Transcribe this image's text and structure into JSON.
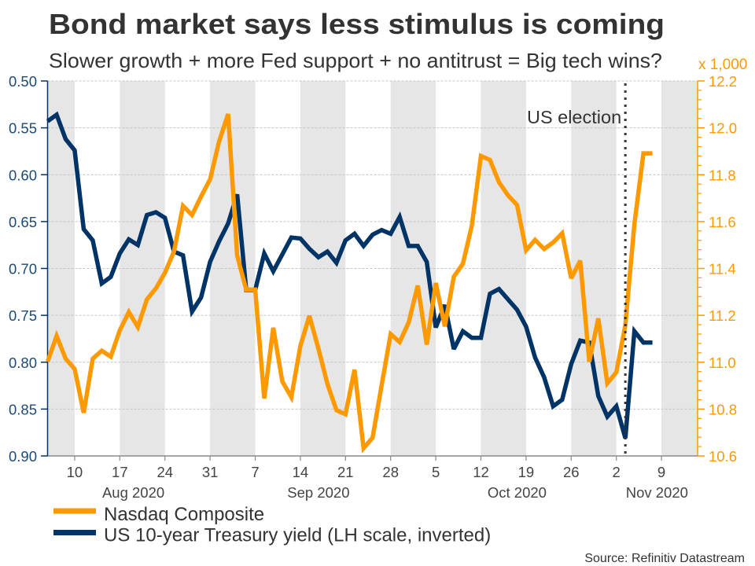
{
  "chart_data": {
    "type": "line",
    "title": "Bond market says less stimulus is coming",
    "subtitle": "Slower growth + more Fed support + no antitrust = Big tech wins?",
    "xlabel": "",
    "xlim": [
      "2020-08-05",
      "2020-11-13"
    ],
    "x_axis_type": "weekdays",
    "x": [
      "2020-08-05",
      "2020-08-06",
      "2020-08-07",
      "2020-08-10",
      "2020-08-11",
      "2020-08-12",
      "2020-08-13",
      "2020-08-14",
      "2020-08-17",
      "2020-08-18",
      "2020-08-19",
      "2020-08-20",
      "2020-08-21",
      "2020-08-24",
      "2020-08-25",
      "2020-08-26",
      "2020-08-27",
      "2020-08-28",
      "2020-08-31",
      "2020-09-01",
      "2020-09-02",
      "2020-09-03",
      "2020-09-04",
      "2020-09-07",
      "2020-09-08",
      "2020-09-09",
      "2020-09-10",
      "2020-09-11",
      "2020-09-14",
      "2020-09-15",
      "2020-09-16",
      "2020-09-17",
      "2020-09-18",
      "2020-09-21",
      "2020-09-22",
      "2020-09-23",
      "2020-09-24",
      "2020-09-25",
      "2020-09-28",
      "2020-09-29",
      "2020-09-30",
      "2020-10-01",
      "2020-10-02",
      "2020-10-05",
      "2020-10-06",
      "2020-10-07",
      "2020-10-08",
      "2020-10-09",
      "2020-10-12",
      "2020-10-13",
      "2020-10-14",
      "2020-10-15",
      "2020-10-16",
      "2020-10-19",
      "2020-10-20",
      "2020-10-21",
      "2020-10-22",
      "2020-10-23",
      "2020-10-26",
      "2020-10-27",
      "2020-10-28",
      "2020-10-29",
      "2020-10-30",
      "2020-11-02",
      "2020-11-03",
      "2020-11-04",
      "2020-11-05",
      "2020-11-06"
    ],
    "x_ticks": [
      {
        "date": "2020-08-10",
        "label": "10"
      },
      {
        "date": "2020-08-17",
        "label": "17"
      },
      {
        "date": "2020-08-24",
        "label": "24"
      },
      {
        "date": "2020-08-31",
        "label": "31"
      },
      {
        "date": "2020-09-07",
        "label": "7"
      },
      {
        "date": "2020-09-14",
        "label": "14"
      },
      {
        "date": "2020-09-21",
        "label": "21"
      },
      {
        "date": "2020-09-28",
        "label": "28"
      },
      {
        "date": "2020-10-05",
        "label": "5"
      },
      {
        "date": "2020-10-12",
        "label": "12"
      },
      {
        "date": "2020-10-19",
        "label": "19"
      },
      {
        "date": "2020-10-26",
        "label": "26"
      },
      {
        "date": "2020-11-02",
        "label": "2"
      },
      {
        "date": "2020-11-09",
        "label": "9"
      }
    ],
    "month_labels": [
      {
        "label": "Aug 2020",
        "first": "2020-08-03",
        "last": "2020-08-31"
      },
      {
        "label": "Sep 2020",
        "first": "2020-09-01",
        "last": "2020-09-30"
      },
      {
        "label": "Oct 2020",
        "first": "2020-10-01",
        "last": "2020-10-30"
      },
      {
        "label": "Nov 2020",
        "first": "2020-11-02",
        "last": "2020-11-30"
      }
    ],
    "shaded_weeks": [
      "2020-08-03",
      "2020-08-17",
      "2020-08-31",
      "2020-09-14",
      "2020-09-28",
      "2020-10-12",
      "2020-10-26",
      "2020-11-09"
    ],
    "series": [
      {
        "name": "Nasdaq Composite",
        "axis": "right",
        "unit": "thousands",
        "color": "#ff9900",
        "values": [
          11.002,
          11.112,
          11.015,
          10.971,
          10.784,
          11.015,
          11.049,
          11.024,
          11.136,
          11.214,
          11.15,
          11.268,
          11.315,
          11.382,
          11.472,
          11.667,
          11.628,
          11.707,
          11.78,
          11.942,
          12.059,
          11.455,
          11.31,
          11.31,
          10.845,
          11.147,
          10.918,
          10.851,
          11.069,
          11.198,
          11.058,
          10.907,
          10.795,
          10.778,
          10.968,
          10.633,
          10.678,
          10.901,
          11.12,
          11.086,
          11.17,
          11.327,
          11.075,
          11.338,
          11.153,
          11.365,
          11.42,
          11.584,
          11.88,
          11.863,
          11.768,
          11.712,
          11.671,
          11.478,
          11.522,
          11.483,
          11.511,
          11.55,
          11.358,
          11.433,
          11.002,
          11.187,
          10.91,
          10.957,
          11.159,
          11.59,
          11.891,
          11.891
        ]
      },
      {
        "name": "US 10-year Treasury yield (LH scale, inverted)",
        "axis": "left",
        "unit": "percent",
        "color": "#003366",
        "values": [
          0.543,
          0.536,
          0.562,
          0.574,
          0.658,
          0.67,
          0.716,
          0.709,
          0.684,
          0.669,
          0.675,
          0.643,
          0.64,
          0.646,
          0.682,
          0.686,
          0.746,
          0.731,
          0.693,
          0.671,
          0.652,
          0.621,
          0.723,
          0.723,
          0.684,
          0.703,
          0.685,
          0.667,
          0.668,
          0.679,
          0.688,
          0.682,
          0.694,
          0.67,
          0.663,
          0.676,
          0.664,
          0.659,
          0.663,
          0.645,
          0.676,
          0.676,
          0.693,
          0.763,
          0.739,
          0.786,
          0.767,
          0.774,
          0.774,
          0.727,
          0.722,
          0.733,
          0.744,
          0.762,
          0.795,
          0.816,
          0.847,
          0.84,
          0.802,
          0.777,
          0.779,
          0.836,
          0.858,
          0.847,
          0.881,
          0.767,
          0.779,
          0.779
        ]
      }
    ],
    "y_left": {
      "label": "",
      "lim": [
        0.5,
        0.9
      ],
      "inverted": true,
      "ticks": [
        "0.50",
        "0.55",
        "0.60",
        "0.65",
        "0.70",
        "0.75",
        "0.80",
        "0.85",
        "0.90"
      ],
      "color": "#1d4a78",
      "axis_color": "#003366"
    },
    "y_right": {
      "label": "",
      "unit_label": "x 1,000",
      "lim": [
        10.6,
        12.2
      ],
      "inverted": false,
      "ticks": [
        "10.6",
        "10.8",
        "11.0",
        "11.2",
        "11.4",
        "11.6",
        "11.8",
        "12.0",
        "12.2"
      ],
      "minor_step": 0.04,
      "color": "#ff9900"
    },
    "grid": true,
    "annotations": [
      {
        "type": "vline",
        "date": "2020-11-03",
        "label": "US election",
        "style": "dotted"
      }
    ],
    "legend": {
      "position": "bottom-left",
      "entries": [
        "Nasdaq Composite",
        "US 10-year Treasury yield (LH scale, inverted)"
      ]
    },
    "source": "Source: Refinitiv Datastream"
  }
}
